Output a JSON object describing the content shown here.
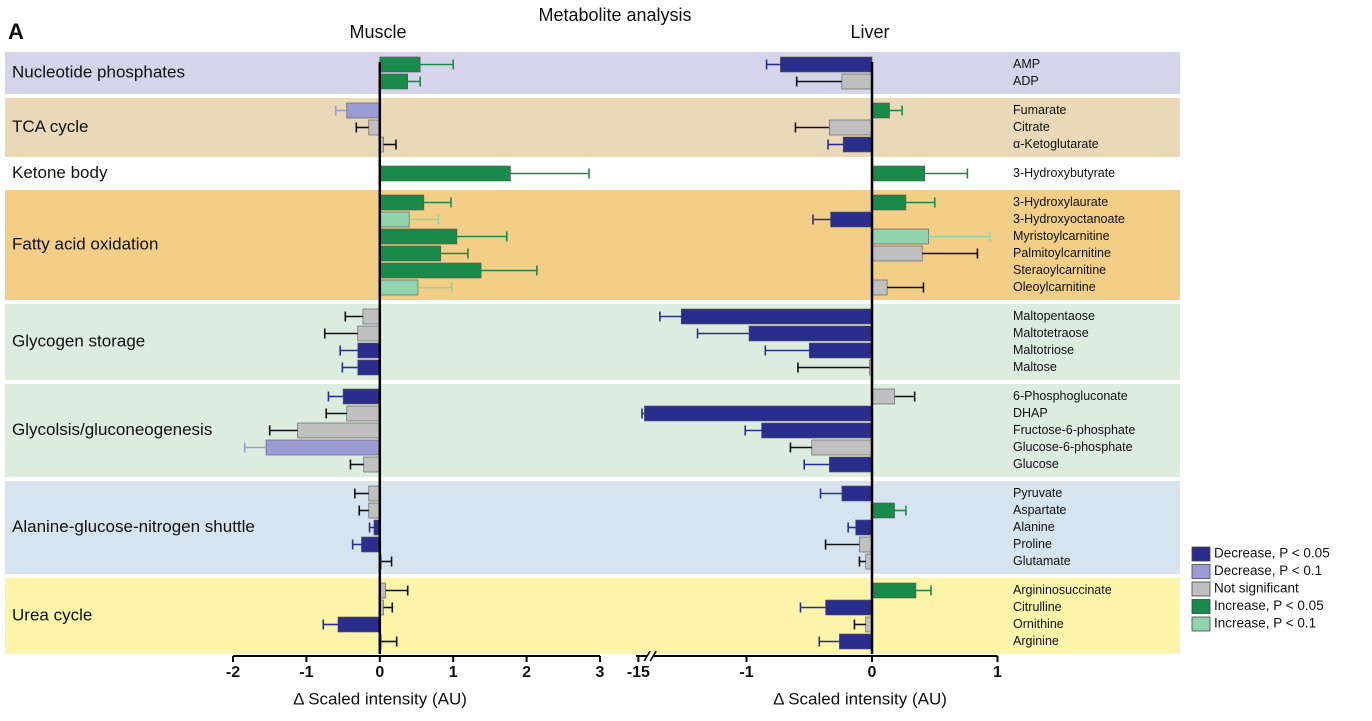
{
  "title": "Metabolite analysis",
  "panel_label": "A",
  "groups": [
    {
      "name": "Nucleotide phosphates",
      "rows": 2,
      "color": "#d6d4ea"
    },
    {
      "name": "TCA cycle",
      "rows": 3,
      "color": "#ead9b8"
    },
    {
      "name": "Ketone body",
      "rows": 1,
      "color": "#ffffff"
    },
    {
      "name": "Fatty acid oxidation",
      "rows": 6,
      "color": "#f2ce86"
    },
    {
      "name": "Glycogen storage",
      "rows": 4,
      "color": "#dcecdf"
    },
    {
      "name": "Glycolsis/gluconeogenesis",
      "rows": 5,
      "color": "#dcecdf"
    },
    {
      "name": "Alanine-glucose-nitrogen shuttle",
      "rows": 5,
      "color": "#d6e4ef"
    },
    {
      "name": "Urea cycle",
      "rows": 4,
      "color": "#fbf4a9"
    }
  ],
  "metabolites": [
    "AMP",
    "ADP",
    "Fumarate",
    "Citrate",
    "α-Ketoglutarate",
    "3-Hydroxybutyrate",
    "3-Hydroxylaurate",
    "3-Hydroxyoctanoate",
    "Myristoylcarnitine",
    "Palmitoylcarnitine",
    "Steraoylcarnitine",
    "Oleoylcarnitine",
    "Maltopentaose",
    "Maltotetraose",
    "Maltotriose",
    "Maltose",
    "6-Phosphogluconate",
    "DHAP",
    "Fructose-6-phosphate",
    "Glucose-6-phosphate",
    "Glucose",
    "Pyruvate",
    "Aspartate",
    "Alanine",
    "Proline",
    "Glutamate",
    "Argininosuccinate",
    "Citrulline",
    "Ornithine",
    "Arginine"
  ],
  "legend": [
    {
      "name": "Decrease, P < 0.05",
      "color": "#2b2d8c"
    },
    {
      "name": "Decrease, P < 0.1",
      "color": "#9b9bd6"
    },
    {
      "name": "Not significant",
      "color": "#c0c0c0"
    },
    {
      "name": "Increase, P < 0.05",
      "color": "#1a8a4a"
    },
    {
      "name": "Increase, P < 0.1",
      "color": "#8fd4ad"
    }
  ],
  "chart_data": [
    {
      "type": "hbar",
      "title": "Muscle",
      "xlabel": "Δ Scaled intensity (AU)",
      "xlim": [
        -2,
        3
      ],
      "xticks": [
        -2,
        -1,
        0,
        1,
        2,
        3
      ],
      "values": [
        0.55,
        0.38,
        -0.45,
        -0.15,
        0.05,
        1.78,
        0.6,
        0.4,
        1.05,
        0.83,
        1.38,
        0.52,
        -0.23,
        -0.3,
        -0.3,
        -0.3,
        -0.5,
        -0.45,
        -1.12,
        -1.55,
        -0.22,
        -0.15,
        -0.15,
        -0.08,
        -0.25,
        0.02,
        0.08,
        0.05,
        -0.57,
        0.02
      ],
      "errors": [
        0.45,
        0.17,
        0.15,
        0.17,
        0.17,
        1.07,
        0.37,
        0.4,
        0.68,
        0.37,
        0.76,
        0.46,
        0.24,
        0.45,
        0.24,
        0.21,
        0.2,
        0.28,
        0.38,
        0.29,
        0.18,
        0.19,
        0.13,
        0.06,
        0.12,
        0.14,
        0.3,
        0.12,
        0.2,
        0.21
      ],
      "classes": [
        3,
        3,
        1,
        2,
        2,
        3,
        3,
        4,
        3,
        3,
        3,
        4,
        2,
        2,
        0,
        0,
        0,
        2,
        2,
        1,
        2,
        2,
        2,
        0,
        0,
        2,
        2,
        2,
        0,
        2
      ]
    },
    {
      "type": "hbar",
      "title": "Liver",
      "xlabel": "Δ Scaled intensity (AU)",
      "xlim": [
        -15.1,
        1
      ],
      "xbreak": [
        -14.6,
        -1.75
      ],
      "xticks": [
        -15,
        -1,
        0,
        1
      ],
      "values": [
        -0.73,
        -0.24,
        0.14,
        -0.34,
        -0.23,
        0.42,
        0.27,
        -0.33,
        0.45,
        0.4,
        null,
        0.12,
        -1.52,
        -0.98,
        -0.5,
        -0.02,
        0.18,
        -14.75,
        -0.88,
        -0.48,
        -0.34,
        -0.24,
        0.18,
        -0.13,
        -0.1,
        -0.05,
        0.35,
        -0.37,
        -0.05,
        -0.26
      ],
      "errors": [
        0.11,
        0.36,
        0.1,
        0.27,
        0.12,
        0.34,
        0.23,
        0.14,
        0.49,
        0.44,
        null,
        0.29,
        0.17,
        0.41,
        0.35,
        0.57,
        0.16,
        0.1,
        0.13,
        0.17,
        0.2,
        0.17,
        0.09,
        0.06,
        0.27,
        0.05,
        0.12,
        0.2,
        0.09,
        0.16
      ],
      "classes": [
        0,
        2,
        3,
        2,
        0,
        3,
        3,
        0,
        4,
        2,
        null,
        2,
        0,
        0,
        0,
        2,
        2,
        0,
        0,
        2,
        0,
        0,
        3,
        0,
        2,
        2,
        3,
        0,
        2,
        0
      ]
    }
  ]
}
